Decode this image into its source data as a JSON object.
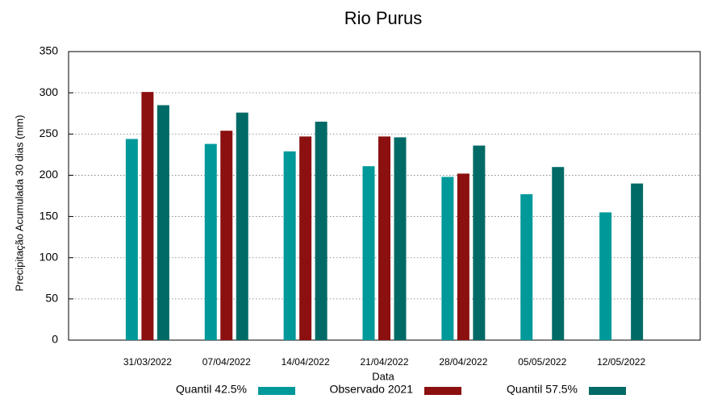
{
  "chart_data": {
    "type": "bar",
    "title": "Rio Purus",
    "ylabel": "Precipitação Acumulada 30 dias (mm)",
    "xlabel": "Data",
    "categories": [
      "31/03/2022",
      "07/04/2022",
      "14/04/2022",
      "21/04/2022",
      "28/04/2022",
      "05/05/2022",
      "12/05/2022"
    ],
    "series": [
      {
        "name": "Quantil 42.5%",
        "color": "#00999a",
        "values": [
          244,
          238,
          229,
          211,
          198,
          177,
          155
        ]
      },
      {
        "name": "Observado 2021",
        "color": "#8c1010",
        "values": [
          301,
          254,
          247,
          247,
          202,
          null,
          null
        ]
      },
      {
        "name": "Quantil 57.5%",
        "color": "#006a66",
        "values": [
          285,
          276,
          265,
          246,
          236,
          210,
          190
        ]
      }
    ],
    "ylim": [
      0,
      350
    ],
    "yticks": [
      0,
      50,
      100,
      150,
      200,
      250,
      300,
      350
    ],
    "grid": true
  }
}
